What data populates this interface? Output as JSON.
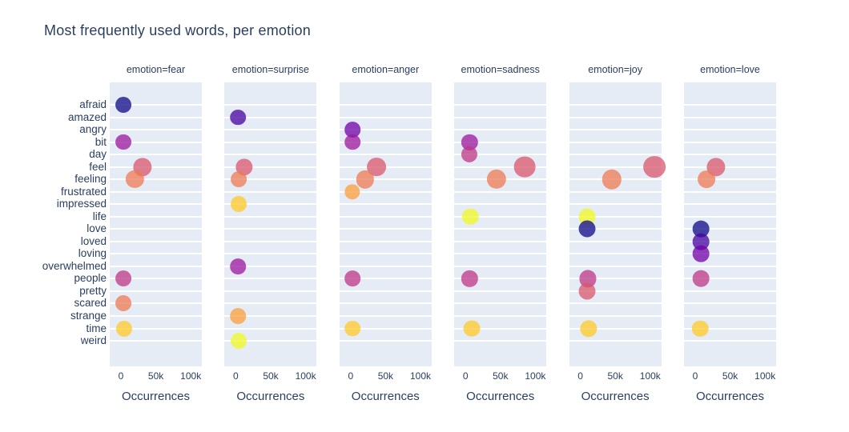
{
  "chart_data": {
    "type": "scatter",
    "title": "Most frequently used words, per emotion",
    "xlabel": "Occurrences",
    "x_tick_labels": [
      "0",
      "50k",
      "100k"
    ],
    "x_tick_values": [
      0,
      50000,
      100000
    ],
    "xlim": [
      -16000,
      116000
    ],
    "grid": "horizontal-white-per-category",
    "legend": "none",
    "categories": [
      "afraid",
      "amazed",
      "angry",
      "bit",
      "day",
      "feel",
      "feeling",
      "frustrated",
      "impressed",
      "life",
      "love",
      "loved",
      "loving",
      "overwhelmed",
      "people",
      "pretty",
      "scared",
      "strange",
      "time",
      "weird"
    ],
    "palette": [
      "#0d0887",
      "#46039f",
      "#7201a8",
      "#9c179e",
      "#bd3786",
      "#d8576b",
      "#ed7953",
      "#fb9f3a",
      "#fdca26",
      "#f0f921"
    ],
    "marker_opacity": 0.75,
    "colors": {
      "plot_bg": "#e5ecf6",
      "grid_line": "#ffffff",
      "text": "#2a3f5f"
    },
    "facets": [
      {
        "emotion": "fear",
        "label": "emotion=fear",
        "points": [
          {
            "word": "afraid",
            "value": 4000
          },
          {
            "word": "bit",
            "value": 4000
          },
          {
            "word": "feel",
            "value": 31000
          },
          {
            "word": "feeling",
            "value": 20000
          },
          {
            "word": "people",
            "value": 4000
          },
          {
            "word": "scared",
            "value": 4000
          },
          {
            "word": "time",
            "value": 5000
          }
        ]
      },
      {
        "emotion": "surprise",
        "label": "emotion=surprise",
        "points": [
          {
            "word": "amazed",
            "value": 3000
          },
          {
            "word": "feel",
            "value": 12000
          },
          {
            "word": "feeling",
            "value": 4000
          },
          {
            "word": "impressed",
            "value": 4000
          },
          {
            "word": "overwhelmed",
            "value": 3000
          },
          {
            "word": "strange",
            "value": 3000
          },
          {
            "word": "weird",
            "value": 4000
          }
        ]
      },
      {
        "emotion": "anger",
        "label": "emotion=anger",
        "points": [
          {
            "word": "angry",
            "value": 3000
          },
          {
            "word": "bit",
            "value": 3000
          },
          {
            "word": "feel",
            "value": 37000
          },
          {
            "word": "feeling",
            "value": 21000
          },
          {
            "word": "frustrated",
            "value": 2000
          },
          {
            "word": "people",
            "value": 3000
          },
          {
            "word": "time",
            "value": 3000
          }
        ]
      },
      {
        "emotion": "sadness",
        "label": "emotion=sadness",
        "points": [
          {
            "word": "bit",
            "value": 6000
          },
          {
            "word": "day",
            "value": 5000
          },
          {
            "word": "feel",
            "value": 85000
          },
          {
            "word": "feeling",
            "value": 44000
          },
          {
            "word": "life",
            "value": 7000
          },
          {
            "word": "people",
            "value": 6000
          },
          {
            "word": "time",
            "value": 9000
          }
        ]
      },
      {
        "emotion": "joy",
        "label": "emotion=joy",
        "points": [
          {
            "word": "feel",
            "value": 106000
          },
          {
            "word": "feeling",
            "value": 45000
          },
          {
            "word": "life",
            "value": 10000
          },
          {
            "word": "love",
            "value": 10000
          },
          {
            "word": "people",
            "value": 11000
          },
          {
            "word": "pretty",
            "value": 10000
          },
          {
            "word": "time",
            "value": 12000
          }
        ]
      },
      {
        "emotion": "love",
        "label": "emotion=love",
        "points": [
          {
            "word": "feel",
            "value": 30000
          },
          {
            "word": "feeling",
            "value": 16000
          },
          {
            "word": "love",
            "value": 8000
          },
          {
            "word": "loved",
            "value": 8000
          },
          {
            "word": "loving",
            "value": 8000
          },
          {
            "word": "people",
            "value": 8000
          },
          {
            "word": "time",
            "value": 7000
          }
        ]
      }
    ]
  }
}
